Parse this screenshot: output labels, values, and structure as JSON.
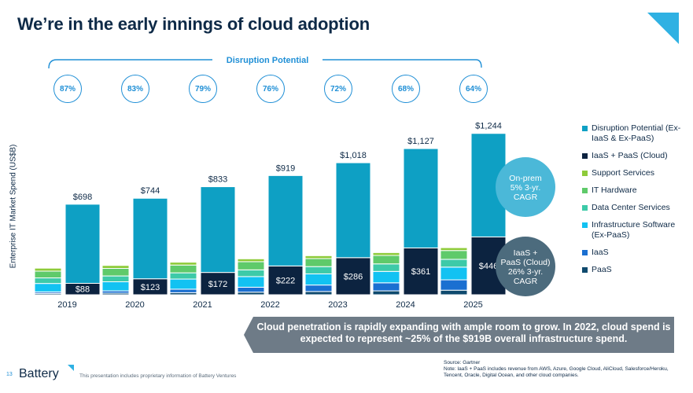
{
  "title": "We’re in the early innings of cloud adoption",
  "disruption_header": "Disruption Potential",
  "disruption_pcts": [
    "87%",
    "83%",
    "79%",
    "76%",
    "72%",
    "68%",
    "64%"
  ],
  "ylabel": "Enterprise IT Market Spend (US$B)",
  "chart_data": {
    "type": "bar",
    "categories": [
      "2019",
      "2020",
      "2021",
      "2022",
      "2023",
      "2024",
      "2025"
    ],
    "ylabel": "Enterprise IT Market Spend (US$B)",
    "onprem_stack": [
      {
        "name": "PaaS",
        "color": "#0f4a6e",
        "values": [
          10,
          12,
          16,
          20,
          25,
          30,
          35
        ]
      },
      {
        "name": "IaaS",
        "color": "#1a6fd1",
        "values": [
          12,
          18,
          27,
          38,
          50,
          62,
          80
        ]
      },
      {
        "name": "Infrastructure Software (Ex-PaaS)",
        "color": "#12c2f2",
        "values": [
          65,
          70,
          78,
          82,
          86,
          88,
          98
        ]
      },
      {
        "name": "Data Center Services",
        "color": "#3dcaa8",
        "values": [
          43,
          45,
          48,
          52,
          56,
          58,
          60
        ]
      },
      {
        "name": "IT Hardware",
        "color": "#5fca6a",
        "values": [
          52,
          58,
          60,
          63,
          62,
          65,
          68
        ]
      },
      {
        "name": "Support Services",
        "color": "#8ecb3a",
        "values": [
          23,
          23,
          22,
          22,
          22,
          22,
          22
        ]
      }
    ],
    "cloud_stack": [
      {
        "name": "IaaS + PaaS (Cloud)",
        "color": "#0c2340",
        "values": [
          88,
          123,
          172,
          222,
          286,
          361,
          446
        ]
      },
      {
        "name": "Disruption Potential (Ex-IaaS & Ex-PaaS)",
        "color": "#0ea0c4",
        "values": [
          610,
          621,
          661,
          697,
          732,
          766,
          798
        ]
      }
    ],
    "totals": [
      698,
      744,
      833,
      919,
      1018,
      1127,
      1244
    ],
    "total_labels": [
      "$698",
      "$744",
      "$833",
      "$919",
      "$1,018",
      "$1,127",
      "$1,244"
    ],
    "cloud_labels": [
      "$88",
      "$123",
      "$172",
      "$222",
      "$286",
      "$361",
      "$446"
    ],
    "ylim": [
      0,
      1300
    ]
  },
  "legend": [
    {
      "label": "Disruption Potential (Ex-IaaS & Ex-PaaS)",
      "color": "#0ea0c4"
    },
    {
      "label": "IaaS + PaaS (Cloud)",
      "color": "#0c2340"
    },
    {
      "label": "Support Services",
      "color": "#8ecb3a"
    },
    {
      "label": "IT Hardware",
      "color": "#5fca6a"
    },
    {
      "label": "Data Center Services",
      "color": "#3dcaa8"
    },
    {
      "label": "Infrastructure Software (Ex-PaaS)",
      "color": "#12c2f2"
    },
    {
      "label": "IaaS",
      "color": "#1a6fd1"
    },
    {
      "label": "PaaS",
      "color": "#0f4a6e"
    }
  ],
  "onprem_bubble": {
    "lines": [
      "On-prem",
      "5% 3-yr.",
      "CAGR"
    ],
    "color": "#4bb8d8"
  },
  "cloud_bubble": {
    "lines": [
      "IaaS +",
      "PaaS (Cloud)",
      "26% 3-yr.",
      "CAGR"
    ],
    "color": "#4c6b7d"
  },
  "callout": "Cloud penetration is rapidly expanding with ample room to grow.  In 2022, cloud spend is expected to represent ~25% of the $919B overall infrastructure spend.",
  "source": "Source: Gartner",
  "note": "Note: IaaS + PaaS includes revenue from AWS, Azure, Google Cloud, AliCloud, Salesforce/Heroku, Tencent, Oracle, Digital Ocean, and other cloud companies.",
  "footer": {
    "page_number": "13",
    "logo": "Battery",
    "disclaimer": "This presentation includes proprietary information of Battery Ventures"
  }
}
